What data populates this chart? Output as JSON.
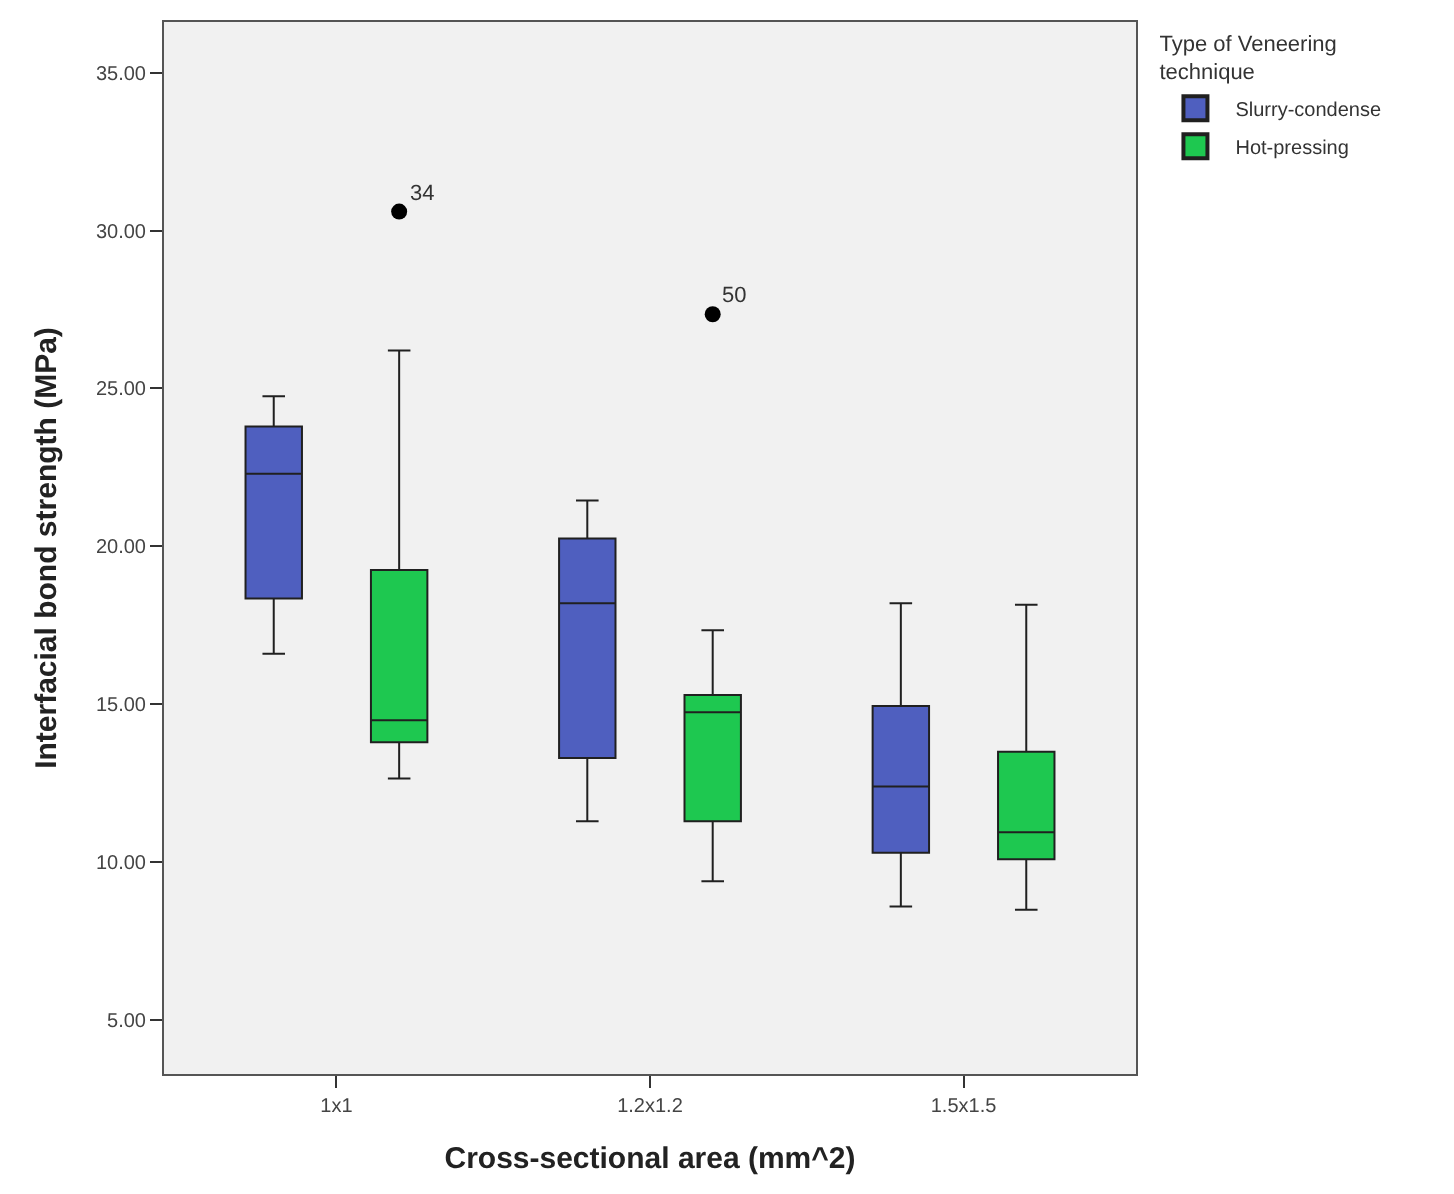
{
  "chart_data": {
    "type": "box",
    "xlabel": "Cross-sectional area (mm^2)",
    "ylabel": "Interfacial bond strength (MPa)",
    "legend_title": "Type of Veneering technique",
    "categories": [
      "1x1",
      "1.2x1.2",
      "1.5x1.5"
    ],
    "series": [
      {
        "name": "Slurry-condense",
        "color": "#4f5fbf",
        "boxes": [
          {
            "low": 16.6,
            "q1": 18.35,
            "median": 22.3,
            "q3": 23.8,
            "high": 24.75
          },
          {
            "low": 11.3,
            "q1": 13.3,
            "median": 18.2,
            "q3": 20.25,
            "high": 21.45
          },
          {
            "low": 8.6,
            "q1": 10.3,
            "median": 12.4,
            "q3": 14.95,
            "high": 18.2
          }
        ]
      },
      {
        "name": "Hot-pressing",
        "color": "#1ec850",
        "boxes": [
          {
            "low": 12.65,
            "q1": 13.8,
            "median": 14.5,
            "q3": 19.25,
            "high": 26.2,
            "outliers": [
              30.6
            ]
          },
          {
            "low": 9.4,
            "q1": 11.3,
            "median": 14.75,
            "q3": 15.3,
            "high": 17.35,
            "outliers": [
              27.35
            ]
          },
          {
            "low": 8.5,
            "q1": 10.1,
            "median": 10.95,
            "q3": 13.5,
            "high": 18.15
          }
        ]
      }
    ],
    "annotations": [
      "34",
      "50"
    ],
    "ylim": [
      3.3,
      36.6
    ],
    "yticks": [
      {
        "value": 5,
        "label": "5.00"
      },
      {
        "value": 10,
        "label": "10.00"
      },
      {
        "value": 15,
        "label": "15.00"
      },
      {
        "value": 20,
        "label": "20.00"
      },
      {
        "value": 25,
        "label": "25.00"
      },
      {
        "value": 30,
        "label": "30.00"
      },
      {
        "value": 35,
        "label": "35.00"
      }
    ],
    "grid": false,
    "legend": "top right",
    "marker": "circle"
  }
}
